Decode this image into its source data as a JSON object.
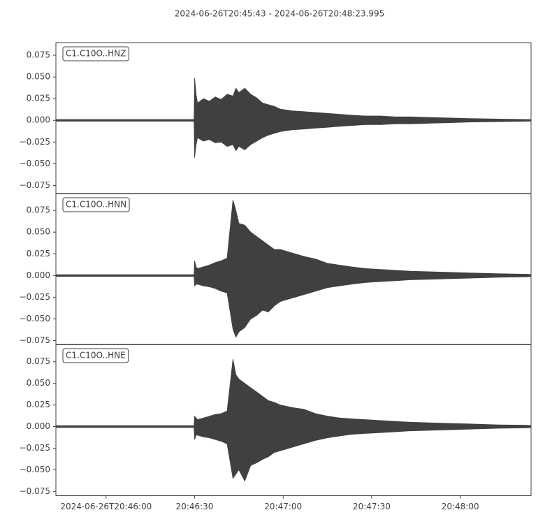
{
  "chart_data": [
    {
      "type": "waveform",
      "title": "2024-06-26T20:45:43  -  2024-06-26T20:48:23.995",
      "label": "C1.C10O..HNZ",
      "color": "#404040",
      "xlim": [
        0,
        160.995
      ],
      "ylim": [
        -0.0847,
        0.0895
      ],
      "yticks": [
        {
          "value": -0.075,
          "label": "−0.075"
        },
        {
          "value": -0.05,
          "label": "−0.050"
        },
        {
          "value": -0.025,
          "label": "−0.025"
        },
        {
          "value": 0,
          "label": "0.000"
        },
        {
          "value": 0.025,
          "label": "0.025"
        },
        {
          "value": 0.05,
          "label": "0.050"
        },
        {
          "value": 0.075,
          "label": "0.075"
        }
      ],
      "x": [
        0,
        10,
        20,
        30,
        40,
        46,
        46.8,
        47,
        47.5,
        48,
        50,
        52,
        54,
        56,
        58,
        60,
        61,
        62,
        64,
        66,
        68,
        70,
        72,
        74,
        76,
        80,
        84,
        88,
        92,
        96,
        100,
        105,
        110,
        115,
        120,
        130,
        140,
        150,
        160,
        161
      ],
      "upper": [
        0.001,
        0.001,
        0.001,
        0.001,
        0.001,
        0.001,
        0.001,
        0.049,
        0.03,
        0.02,
        0.025,
        0.022,
        0.027,
        0.024,
        0.03,
        0.028,
        0.037,
        0.032,
        0.037,
        0.03,
        0.026,
        0.02,
        0.018,
        0.016,
        0.013,
        0.011,
        0.01,
        0.009,
        0.008,
        0.007,
        0.006,
        0.005,
        0.005,
        0.004,
        0.004,
        0.003,
        0.002,
        0.0015,
        0.001,
        0.001
      ],
      "lower": [
        -0.001,
        -0.001,
        -0.001,
        -0.001,
        -0.001,
        -0.001,
        -0.001,
        -0.043,
        -0.028,
        -0.02,
        -0.024,
        -0.022,
        -0.026,
        -0.025,
        -0.03,
        -0.028,
        -0.035,
        -0.03,
        -0.034,
        -0.028,
        -0.024,
        -0.02,
        -0.017,
        -0.015,
        -0.013,
        -0.011,
        -0.01,
        -0.009,
        -0.008,
        -0.007,
        -0.006,
        -0.005,
        -0.005,
        -0.004,
        -0.004,
        -0.003,
        -0.002,
        -0.0015,
        -0.001,
        -0.001
      ]
    },
    {
      "type": "waveform",
      "label": "C1.C10O..HNN",
      "color": "#404040",
      "xlim": [
        0,
        160.995
      ],
      "ylim": [
        -0.0798,
        0.0944
      ],
      "yticks": [
        {
          "value": -0.075,
          "label": "−0.075"
        },
        {
          "value": -0.05,
          "label": "−0.050"
        },
        {
          "value": -0.025,
          "label": "−0.025"
        },
        {
          "value": 0,
          "label": "0.000"
        },
        {
          "value": 0.025,
          "label": "0.025"
        },
        {
          "value": 0.05,
          "label": "0.050"
        },
        {
          "value": 0.075,
          "label": "0.075"
        }
      ],
      "x": [
        0,
        10,
        20,
        30,
        40,
        46,
        46.8,
        47,
        47.5,
        48,
        50,
        52,
        54,
        56,
        58,
        60,
        61,
        62,
        64,
        66,
        68,
        70,
        72,
        74,
        76,
        80,
        84,
        88,
        92,
        96,
        100,
        105,
        110,
        115,
        120,
        130,
        140,
        150,
        160,
        161
      ],
      "upper": [
        0.001,
        0.001,
        0.001,
        0.001,
        0.001,
        0.001,
        0.001,
        0.017,
        0.01,
        0.008,
        0.01,
        0.012,
        0.015,
        0.017,
        0.02,
        0.087,
        0.075,
        0.06,
        0.058,
        0.05,
        0.045,
        0.04,
        0.035,
        0.03,
        0.03,
        0.026,
        0.022,
        0.019,
        0.014,
        0.012,
        0.01,
        0.008,
        0.007,
        0.006,
        0.005,
        0.004,
        0.003,
        0.002,
        0.0015,
        0.001
      ],
      "lower": [
        -0.001,
        -0.001,
        -0.001,
        -0.001,
        -0.001,
        -0.001,
        -0.001,
        -0.012,
        -0.01,
        -0.01,
        -0.012,
        -0.013,
        -0.015,
        -0.018,
        -0.02,
        -0.062,
        -0.071,
        -0.065,
        -0.06,
        -0.05,
        -0.046,
        -0.04,
        -0.042,
        -0.035,
        -0.03,
        -0.026,
        -0.022,
        -0.018,
        -0.014,
        -0.012,
        -0.01,
        -0.008,
        -0.007,
        -0.006,
        -0.005,
        -0.004,
        -0.003,
        -0.002,
        -0.0015,
        -0.001
      ]
    },
    {
      "type": "waveform",
      "label": "C1.C10O..HNE",
      "color": "#404040",
      "xlim": [
        0,
        160.995
      ],
      "ylim": [
        -0.08,
        0.095
      ],
      "yticks": [
        {
          "value": -0.075,
          "label": "−0.075"
        },
        {
          "value": -0.05,
          "label": "−0.050"
        },
        {
          "value": -0.025,
          "label": "−0.025"
        },
        {
          "value": 0,
          "label": "0.000"
        },
        {
          "value": 0.025,
          "label": "0.025"
        },
        {
          "value": 0.05,
          "label": "0.050"
        },
        {
          "value": 0.075,
          "label": "0.075"
        }
      ],
      "xticks": [
        {
          "value": 17,
          "label": "2024-06-26T20:46:00"
        },
        {
          "value": 47,
          "label": "20:46:30"
        },
        {
          "value": 77,
          "label": "20:47:00"
        },
        {
          "value": 107,
          "label": "20:47:30"
        },
        {
          "value": 137,
          "label": "20:48:00"
        }
      ],
      "x": [
        0,
        10,
        20,
        30,
        40,
        46,
        46.8,
        47,
        47.5,
        48,
        50,
        52,
        54,
        56,
        58,
        60,
        61,
        62,
        64,
        66,
        68,
        70,
        72,
        74,
        76,
        80,
        84,
        88,
        92,
        96,
        100,
        105,
        110,
        115,
        120,
        130,
        140,
        150,
        160,
        161
      ],
      "upper": [
        0.001,
        0.001,
        0.001,
        0.001,
        0.001,
        0.001,
        0.001,
        0.012,
        0.01,
        0.008,
        0.01,
        0.012,
        0.014,
        0.015,
        0.018,
        0.078,
        0.06,
        0.055,
        0.05,
        0.045,
        0.04,
        0.035,
        0.03,
        0.028,
        0.025,
        0.022,
        0.02,
        0.015,
        0.012,
        0.01,
        0.009,
        0.008,
        0.007,
        0.006,
        0.005,
        0.004,
        0.003,
        0.002,
        0.0015,
        0.001
      ],
      "lower": [
        -0.001,
        -0.001,
        -0.001,
        -0.001,
        -0.001,
        -0.001,
        -0.001,
        -0.015,
        -0.01,
        -0.01,
        -0.012,
        -0.013,
        -0.015,
        -0.017,
        -0.02,
        -0.06,
        -0.055,
        -0.05,
        -0.063,
        -0.045,
        -0.042,
        -0.038,
        -0.035,
        -0.03,
        -0.028,
        -0.024,
        -0.02,
        -0.016,
        -0.013,
        -0.011,
        -0.009,
        -0.008,
        -0.007,
        -0.006,
        -0.005,
        -0.004,
        -0.003,
        -0.002,
        -0.0015,
        -0.001
      ]
    }
  ]
}
